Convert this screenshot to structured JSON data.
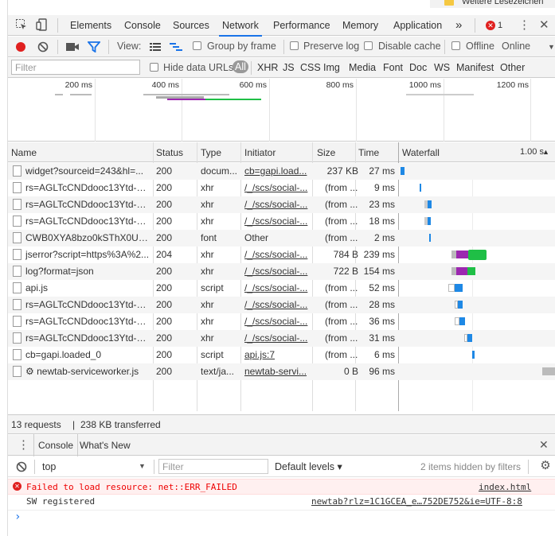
{
  "bookmark_bar": {
    "label": "Weitere Lesezeichen"
  },
  "main_toolbar": {
    "tabs": [
      "Elements",
      "Console",
      "Sources",
      "Network",
      "Performance",
      "Memory",
      "Application"
    ],
    "active_tab": "Network",
    "more": "»",
    "error_count": "1",
    "menu": "⋮",
    "close": "✕"
  },
  "network_toolbar": {
    "view_label": "View:",
    "group_by_frame": "Group by frame",
    "preserve_log": "Preserve log",
    "disable_cache": "Disable cache",
    "offline": "Offline",
    "throttle": "Online"
  },
  "filter_bar": {
    "placeholder": "Filter",
    "hide_data_urls": "Hide data URLs",
    "types": [
      "All",
      "XHR",
      "JS",
      "CSS",
      "Img",
      "Media",
      "Font",
      "Doc",
      "WS",
      "Manifest",
      "Other"
    ]
  },
  "overview": {
    "ticks": [
      "200 ms",
      "400 ms",
      "600 ms",
      "800 ms",
      "1000 ms",
      "1200 ms"
    ]
  },
  "table": {
    "headers": {
      "name": "Name",
      "status": "Status",
      "type": "Type",
      "initiator": "Initiator",
      "size": "Size",
      "time": "Time",
      "waterfall": "Waterfall",
      "waterfall_scale": "1.00 s"
    },
    "rows": [
      {
        "name": "widget?sourceid=243&hl=...",
        "status": "200",
        "type": "docum...",
        "initiator": "cb=gapi.load...",
        "initiator_link": true,
        "size": "237 KB",
        "time": "27 ms"
      },
      {
        "name": "rs=AGLTcCNDdooc13Ytd-B...",
        "status": "200",
        "type": "xhr",
        "initiator": "/_/scs/social-...",
        "initiator_link": true,
        "size": "(from ...",
        "time": "9 ms"
      },
      {
        "name": "rs=AGLTcCNDdooc13Ytd-B...",
        "status": "200",
        "type": "xhr",
        "initiator": "/_/scs/social-...",
        "initiator_link": true,
        "size": "(from ...",
        "time": "23 ms"
      },
      {
        "name": "rs=AGLTcCNDdooc13Ytd-B...",
        "status": "200",
        "type": "xhr",
        "initiator": "/_/scs/social-...",
        "initiator_link": true,
        "size": "(from ...",
        "time": "18 ms"
      },
      {
        "name": "CWB0XYA8bzo0kSThX0UTu...",
        "status": "200",
        "type": "font",
        "initiator": "Other",
        "initiator_link": false,
        "size": "(from ...",
        "time": "2 ms"
      },
      {
        "name": "jserror?script=https%3A%2...",
        "status": "204",
        "type": "xhr",
        "initiator": "/_/scs/social-...",
        "initiator_link": true,
        "size": "784 B",
        "time": "239 ms"
      },
      {
        "name": "log?format=json",
        "status": "200",
        "type": "xhr",
        "initiator": "/_/scs/social-...",
        "initiator_link": true,
        "size": "722 B",
        "time": "154 ms"
      },
      {
        "name": "api.js",
        "status": "200",
        "type": "script",
        "initiator": "/_/scs/social-...",
        "initiator_link": true,
        "size": "(from ...",
        "time": "52 ms"
      },
      {
        "name": "rs=AGLTcCNDdooc13Ytd-B...",
        "status": "200",
        "type": "xhr",
        "initiator": "/_/scs/social-...",
        "initiator_link": true,
        "size": "(from ...",
        "time": "28 ms"
      },
      {
        "name": "rs=AGLTcCNDdooc13Ytd-B...",
        "status": "200",
        "type": "xhr",
        "initiator": "/_/scs/social-...",
        "initiator_link": true,
        "size": "(from ...",
        "time": "36 ms"
      },
      {
        "name": "rs=AGLTcCNDdooc13Ytd-B...",
        "status": "200",
        "type": "xhr",
        "initiator": "/_/scs/social-...",
        "initiator_link": true,
        "size": "(from ...",
        "time": "31 ms"
      },
      {
        "name": "cb=gapi.loaded_0",
        "status": "200",
        "type": "script",
        "initiator": "api.js:7",
        "initiator_link": true,
        "size": "(from ...",
        "time": "6 ms"
      },
      {
        "name": "⚙ newtab-serviceworker.js",
        "status": "200",
        "type": "text/ja...",
        "initiator": "newtab-servi...",
        "initiator_link": true,
        "size": "0 B",
        "time": "96 ms"
      }
    ]
  },
  "status_bar": {
    "requests": "13 requests",
    "separator": "|",
    "transferred": "238 KB transferred"
  },
  "drawer": {
    "tabs": [
      "Console",
      "What's New"
    ],
    "close": "✕"
  },
  "console_toolbar": {
    "context": "top",
    "filter_placeholder": "Filter",
    "levels": "Default levels ▾",
    "hidden": "2 items hidden by filters"
  },
  "console_messages": [
    {
      "level": "error",
      "text": "Failed to load resource: net::ERR_FAILED",
      "source": "index.html"
    },
    {
      "level": "log",
      "text": "SW registered",
      "source": "newtab?rlz=1C1GCEA_e…752DE752&ie=UTF-8:8"
    }
  ],
  "console_prompt": "›",
  "colors": {
    "accent": "#1a73e8",
    "record": "#e0201f",
    "filter_active": "#1a73e8",
    "waterfall_blue": "#1e88e5",
    "waterfall_green": "#1fbf46",
    "waterfall_purple": "#9c27b0",
    "error": "#e00000"
  }
}
